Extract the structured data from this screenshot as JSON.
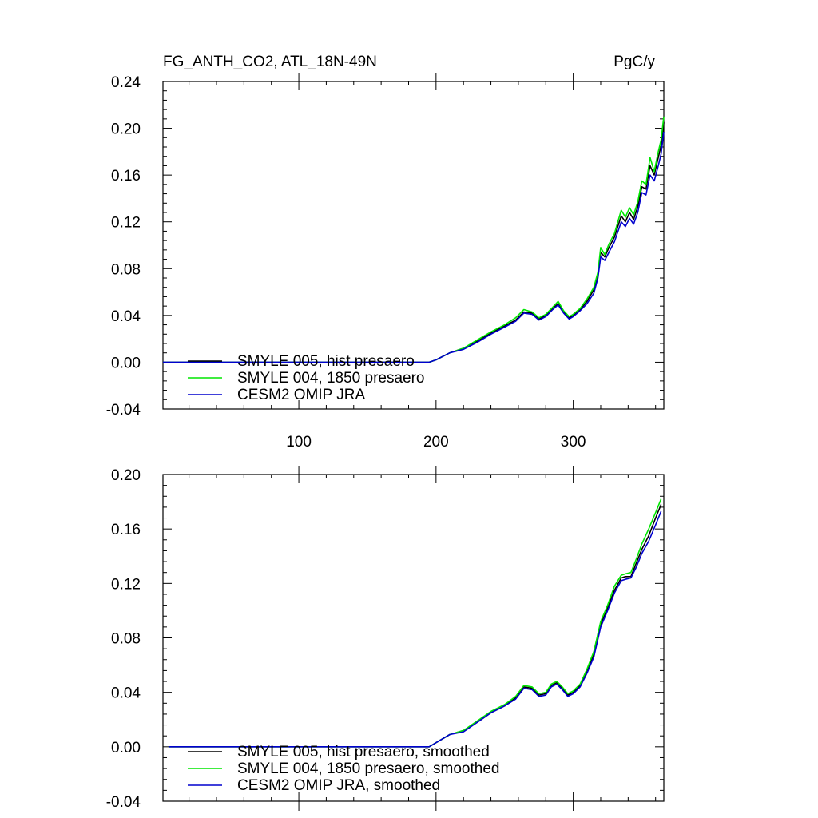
{
  "chart_data": [
    {
      "type": "line",
      "title": "FG_ANTH_CO2, ATL_18N-49N",
      "units_label": "PgC/y",
      "xlim": [
        1,
        366
      ],
      "ylim": [
        -0.04,
        0.24
      ],
      "x_ticks": [
        100,
        200,
        300
      ],
      "x_tick_labels": [
        "100",
        "200",
        "300"
      ],
      "y_ticks": [
        -0.04,
        0.0,
        0.04,
        0.08,
        0.12,
        0.16,
        0.2,
        0.24
      ],
      "y_tick_labels": [
        "-0.04",
        "0.00",
        "0.04",
        "0.08",
        "0.12",
        "0.16",
        "0.20",
        "0.24"
      ],
      "legend_position": "bottom-left",
      "series": [
        {
          "name": "SMYLE 005, hist presaero",
          "color": "#000000",
          "x": [
            1,
            195,
            200,
            210,
            220,
            230,
            240,
            250,
            258,
            264,
            270,
            275,
            280,
            285,
            289,
            293,
            297,
            300,
            305,
            310,
            315,
            318,
            320,
            323,
            326,
            330,
            335,
            338,
            341,
            344,
            347,
            350,
            353,
            356,
            359,
            362,
            364,
            366
          ],
          "y": [
            0.0,
            0.0,
            0.002,
            0.008,
            0.012,
            0.018,
            0.025,
            0.031,
            0.036,
            0.043,
            0.042,
            0.037,
            0.04,
            0.046,
            0.05,
            0.043,
            0.038,
            0.04,
            0.045,
            0.052,
            0.062,
            0.075,
            0.094,
            0.09,
            0.098,
            0.107,
            0.125,
            0.12,
            0.128,
            0.122,
            0.133,
            0.15,
            0.148,
            0.168,
            0.16,
            0.175,
            0.185,
            0.205
          ]
        },
        {
          "name": "SMYLE 004, 1850 presaero",
          "color": "#00e600",
          "x": [
            1,
            195,
            200,
            210,
            220,
            230,
            240,
            250,
            258,
            264,
            270,
            275,
            280,
            285,
            289,
            293,
            297,
            300,
            305,
            310,
            315,
            318,
            320,
            323,
            326,
            330,
            335,
            338,
            341,
            344,
            347,
            350,
            353,
            356,
            359,
            362,
            364,
            366
          ],
          "y": [
            0.0,
            0.0,
            0.002,
            0.008,
            0.012,
            0.019,
            0.026,
            0.032,
            0.038,
            0.045,
            0.043,
            0.038,
            0.041,
            0.047,
            0.052,
            0.044,
            0.039,
            0.041,
            0.046,
            0.054,
            0.064,
            0.077,
            0.098,
            0.092,
            0.101,
            0.11,
            0.13,
            0.124,
            0.132,
            0.126,
            0.137,
            0.155,
            0.152,
            0.175,
            0.163,
            0.18,
            0.19,
            0.21
          ]
        },
        {
          "name": "CESM2 OMIP JRA",
          "color": "#0000cd",
          "x": [
            1,
            195,
            200,
            210,
            220,
            230,
            240,
            250,
            258,
            264,
            270,
            275,
            280,
            285,
            289,
            293,
            297,
            300,
            305,
            310,
            315,
            318,
            320,
            323,
            326,
            330,
            335,
            338,
            341,
            344,
            347,
            350,
            353,
            356,
            359,
            362,
            364,
            366
          ],
          "y": [
            0.0,
            0.0,
            0.002,
            0.008,
            0.011,
            0.017,
            0.024,
            0.03,
            0.035,
            0.042,
            0.041,
            0.036,
            0.039,
            0.045,
            0.049,
            0.042,
            0.037,
            0.039,
            0.044,
            0.05,
            0.059,
            0.072,
            0.09,
            0.087,
            0.094,
            0.103,
            0.12,
            0.116,
            0.123,
            0.118,
            0.128,
            0.145,
            0.143,
            0.16,
            0.155,
            0.168,
            0.178,
            0.197
          ]
        }
      ]
    },
    {
      "type": "line",
      "title": "",
      "xlim": [
        1,
        366
      ],
      "ylim": [
        -0.04,
        0.2
      ],
      "x_ticks": [
        100,
        200,
        300
      ],
      "x_tick_labels": [],
      "y_ticks": [
        -0.04,
        0.0,
        0.04,
        0.08,
        0.12,
        0.16,
        0.2
      ],
      "y_tick_labels": [
        "-0.04",
        "0.00",
        "0.04",
        "0.08",
        "0.12",
        "0.16",
        "0.20"
      ],
      "legend_position": "bottom-left",
      "series": [
        {
          "name": "SMYLE 005, hist presaero, smoothed",
          "color": "#000000",
          "x": [
            5,
            195,
            200,
            210,
            220,
            230,
            240,
            250,
            258,
            264,
            270,
            275,
            280,
            284,
            288,
            292,
            296,
            300,
            305,
            310,
            315,
            320,
            325,
            330,
            335,
            338,
            342,
            346,
            350,
            355,
            360,
            364
          ],
          "y": [
            0.0,
            0.0,
            0.003,
            0.009,
            0.012,
            0.018,
            0.025,
            0.03,
            0.036,
            0.044,
            0.043,
            0.038,
            0.039,
            0.045,
            0.047,
            0.043,
            0.038,
            0.04,
            0.045,
            0.055,
            0.068,
            0.09,
            0.102,
            0.115,
            0.124,
            0.125,
            0.125,
            0.135,
            0.145,
            0.155,
            0.168,
            0.178
          ]
        },
        {
          "name": "SMYLE 004, 1850 presaero, smoothed",
          "color": "#00e600",
          "x": [
            5,
            195,
            200,
            210,
            220,
            230,
            240,
            250,
            258,
            264,
            270,
            275,
            280,
            284,
            288,
            292,
            296,
            300,
            305,
            310,
            315,
            320,
            325,
            330,
            335,
            338,
            342,
            346,
            350,
            355,
            360,
            364
          ],
          "y": [
            0.0,
            0.0,
            0.003,
            0.009,
            0.012,
            0.019,
            0.026,
            0.031,
            0.037,
            0.045,
            0.044,
            0.039,
            0.04,
            0.046,
            0.048,
            0.044,
            0.039,
            0.041,
            0.046,
            0.057,
            0.07,
            0.092,
            0.104,
            0.118,
            0.126,
            0.127,
            0.128,
            0.138,
            0.149,
            0.16,
            0.172,
            0.182
          ]
        },
        {
          "name": "CESM2 OMIP JRA, smoothed",
          "color": "#0000cd",
          "x": [
            5,
            195,
            200,
            210,
            220,
            230,
            240,
            250,
            258,
            264,
            270,
            275,
            280,
            284,
            288,
            292,
            296,
            300,
            305,
            310,
            315,
            320,
            325,
            330,
            335,
            338,
            342,
            346,
            350,
            355,
            360,
            364
          ],
          "y": [
            0.0,
            0.0,
            0.003,
            0.009,
            0.011,
            0.018,
            0.025,
            0.03,
            0.035,
            0.043,
            0.042,
            0.037,
            0.038,
            0.044,
            0.046,
            0.042,
            0.037,
            0.039,
            0.044,
            0.054,
            0.066,
            0.088,
            0.1,
            0.113,
            0.122,
            0.123,
            0.124,
            0.132,
            0.142,
            0.151,
            0.163,
            0.173
          ]
        }
      ]
    }
  ]
}
